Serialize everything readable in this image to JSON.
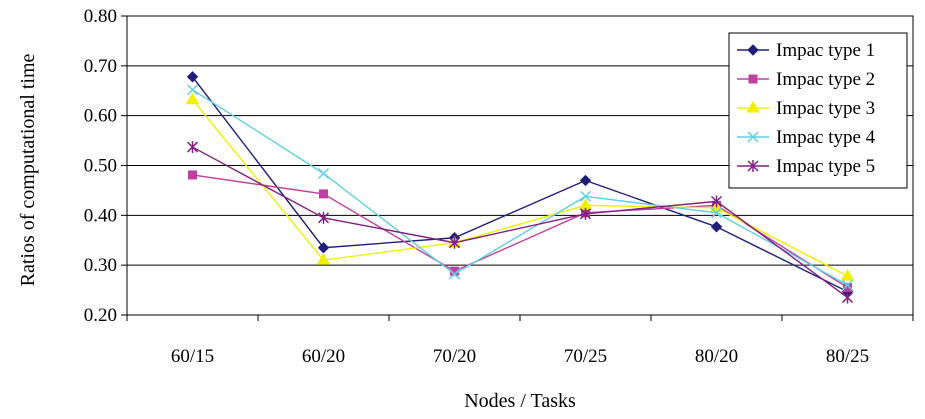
{
  "chart_data": {
    "type": "line",
    "title": "",
    "xlabel": "Nodes / Tasks",
    "ylabel": "Ratios of computational time",
    "categories": [
      "60/15",
      "60/20",
      "70/20",
      "70/25",
      "80/20",
      "80/25"
    ],
    "ylim": [
      0.2,
      0.8
    ],
    "yticks": [
      "0.20",
      "0.30",
      "0.40",
      "0.50",
      "0.60",
      "0.70",
      "0.80"
    ],
    "grid": "horizontal",
    "legend_position": "top-right",
    "series": [
      {
        "name": "Impac type 1",
        "color": "#1F1F7A",
        "marker": "diamond",
        "values": [
          0.678,
          0.335,
          0.355,
          0.47,
          0.377,
          0.247
        ]
      },
      {
        "name": "Impac type 2",
        "color": "#C040A0",
        "marker": "square",
        "values": [
          0.481,
          0.443,
          0.288,
          0.405,
          0.42,
          0.255
        ]
      },
      {
        "name": "Impac type 3",
        "color": "#F0F000",
        "marker": "triangle",
        "values": [
          0.632,
          0.31,
          0.345,
          0.42,
          0.415,
          0.278
        ]
      },
      {
        "name": "Impac type 4",
        "color": "#60D0E0",
        "marker": "x",
        "values": [
          0.652,
          0.484,
          0.282,
          0.438,
          0.405,
          0.26
        ]
      },
      {
        "name": "Impac type 5",
        "color": "#802080",
        "marker": "star",
        "values": [
          0.537,
          0.395,
          0.345,
          0.403,
          0.428,
          0.235
        ]
      }
    ]
  }
}
